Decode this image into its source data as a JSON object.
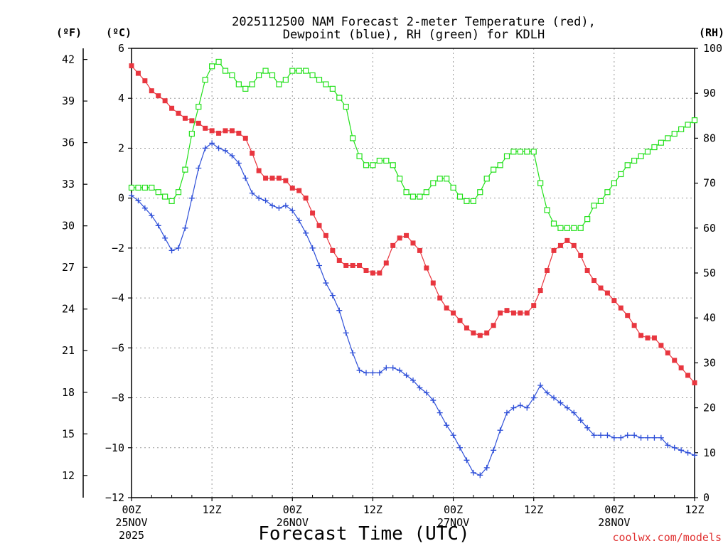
{
  "chart_data": {
    "type": "line",
    "title_line1": "2025112500 NAM Forecast 2-meter Temperature (red),",
    "title_line2": "Dewpoint (blue), RH (green) for KDLH",
    "unit_f": "(ºF)",
    "unit_c": "(ºC)",
    "unit_rh": "(RH)",
    "xlabel": "Forecast Time (UTC)",
    "credit": "coolwx.com/models",
    "x_range_hours": [
      0,
      84
    ],
    "y_left_range_c": [
      -12,
      6
    ],
    "y_right_range_rh": [
      0,
      100
    ],
    "y_ticks_c": [
      "6",
      "4",
      "2",
      "0",
      "−2",
      "−4",
      "−6",
      "−8",
      "−10",
      "−12"
    ],
    "y_ticks_f": [
      "42",
      "39",
      "36",
      "33",
      "30",
      "27",
      "24",
      "21",
      "18",
      "15",
      "12"
    ],
    "y_ticks_rh": [
      "100",
      "90",
      "80",
      "70",
      "60",
      "50",
      "40",
      "30",
      "20",
      "10",
      "0"
    ],
    "x_ticks": [
      {
        "h": 0,
        "label": "00Z",
        "sub1": "25NOV",
        "sub2": "2025"
      },
      {
        "h": 12,
        "label": "12Z",
        "sub1": "",
        "sub2": ""
      },
      {
        "h": 24,
        "label": "00Z",
        "sub1": "26NOV",
        "sub2": ""
      },
      {
        "h": 36,
        "label": "12Z",
        "sub1": "",
        "sub2": ""
      },
      {
        "h": 48,
        "label": "00Z",
        "sub1": "27NOV",
        "sub2": ""
      },
      {
        "h": 60,
        "label": "12Z",
        "sub1": "",
        "sub2": ""
      },
      {
        "h": 72,
        "label": "00Z",
        "sub1": "28NOV",
        "sub2": ""
      },
      {
        "h": 84,
        "label": "12Z",
        "sub1": "",
        "sub2": ""
      }
    ],
    "series": [
      {
        "name": "2-meter Temperature",
        "axis": "celsius",
        "color": "#e8363f",
        "marker": "filled-square",
        "x": [
          0,
          1,
          2,
          3,
          4,
          5,
          6,
          7,
          8,
          9,
          10,
          11,
          12,
          13,
          14,
          15,
          16,
          17,
          18,
          19,
          20,
          21,
          22,
          23,
          24,
          25,
          26,
          27,
          28,
          29,
          30,
          31,
          32,
          33,
          34,
          35,
          36,
          37,
          38,
          39,
          40,
          41,
          42,
          43,
          44,
          45,
          46,
          47,
          48,
          49,
          50,
          51,
          52,
          53,
          54,
          55,
          56,
          57,
          58,
          59,
          60,
          61,
          62,
          63,
          64,
          65,
          66,
          67,
          68,
          69,
          70,
          71,
          72,
          73,
          74,
          75,
          76,
          77,
          78,
          79,
          80,
          81,
          82,
          83,
          84
        ],
        "values": [
          5.3,
          5.0,
          4.7,
          4.3,
          4.1,
          3.9,
          3.6,
          3.4,
          3.2,
          3.1,
          3.0,
          2.8,
          2.7,
          2.6,
          2.7,
          2.7,
          2.6,
          2.4,
          1.8,
          1.1,
          0.8,
          0.8,
          0.8,
          0.7,
          0.4,
          0.3,
          0,
          -0.6,
          -1.1,
          -1.5,
          -2.1,
          -2.5,
          -2.7,
          -2.7,
          -2.7,
          -2.9,
          -3.0,
          -3.0,
          -2.6,
          -1.9,
          -1.6,
          -1.5,
          -1.8,
          -2.1,
          -2.8,
          -3.4,
          -4.0,
          -4.4,
          -4.6,
          -4.9,
          -5.2,
          -5.4,
          -5.5,
          -5.4,
          -5.1,
          -4.6,
          -4.5,
          -4.6,
          -4.6,
          -4.6,
          -4.3,
          -3.7,
          -2.9,
          -2.1,
          -1.9,
          -1.7,
          -1.9,
          -2.3,
          -2.9,
          -3.3,
          -3.6,
          -3.8,
          -4.1,
          -4.4,
          -4.7,
          -5.1,
          -5.5,
          -5.6,
          -5.6,
          -5.9,
          -6.2,
          -6.5,
          -6.8,
          -7.1,
          -7.4
        ]
      },
      {
        "name": "Dewpoint",
        "axis": "celsius",
        "color": "#2e4fd8",
        "marker": "plus",
        "x": [
          0,
          1,
          2,
          3,
          4,
          5,
          6,
          7,
          8,
          9,
          10,
          11,
          12,
          13,
          14,
          15,
          16,
          17,
          18,
          19,
          20,
          21,
          22,
          23,
          24,
          25,
          26,
          27,
          28,
          29,
          30,
          31,
          32,
          33,
          34,
          35,
          36,
          37,
          38,
          39,
          40,
          41,
          42,
          43,
          44,
          45,
          46,
          47,
          48,
          49,
          50,
          51,
          52,
          53,
          54,
          55,
          56,
          57,
          58,
          59,
          60,
          61,
          62,
          63,
          64,
          65,
          66,
          67,
          68,
          69,
          70,
          71,
          72,
          73,
          74,
          75,
          76,
          77,
          78,
          79,
          80,
          81,
          82,
          83,
          84
        ],
        "values": [
          0.1,
          -0.1,
          -0.4,
          -0.7,
          -1.1,
          -1.6,
          -2.1,
          -2.0,
          -1.2,
          0,
          1.2,
          2.0,
          2.2,
          2.0,
          1.9,
          1.7,
          1.4,
          0.8,
          0.2,
          0,
          -0.1,
          -0.3,
          -0.4,
          -0.3,
          -0.5,
          -0.9,
          -1.4,
          -2.0,
          -2.7,
          -3.4,
          -3.9,
          -4.5,
          -5.4,
          -6.2,
          -6.9,
          -7.0,
          -7.0,
          -7.0,
          -6.8,
          -6.8,
          -6.9,
          -7.1,
          -7.3,
          -7.6,
          -7.8,
          -8.1,
          -8.6,
          -9.1,
          -9.5,
          -10.0,
          -10.5,
          -11.0,
          -11.1,
          -10.8,
          -10.1,
          -9.3,
          -8.6,
          -8.4,
          -8.3,
          -8.4,
          -8.0,
          -7.5,
          -7.8,
          -8.0,
          -8.2,
          -8.4,
          -8.6,
          -8.9,
          -9.2,
          -9.5,
          -9.5,
          -9.5,
          -9.6,
          -9.6,
          -9.5,
          -9.5,
          -9.6,
          -9.6,
          -9.6,
          -9.6,
          -9.9,
          -10.0,
          -10.1,
          -10.2,
          -10.3
        ]
      },
      {
        "name": "RH",
        "axis": "percent",
        "color": "#22e01a",
        "marker": "open-square",
        "x": [
          0,
          1,
          2,
          3,
          4,
          5,
          6,
          7,
          8,
          9,
          10,
          11,
          12,
          13,
          14,
          15,
          16,
          17,
          18,
          19,
          20,
          21,
          22,
          23,
          24,
          25,
          26,
          27,
          28,
          29,
          30,
          31,
          32,
          33,
          34,
          35,
          36,
          37,
          38,
          39,
          40,
          41,
          42,
          43,
          44,
          45,
          46,
          47,
          48,
          49,
          50,
          51,
          52,
          53,
          54,
          55,
          56,
          57,
          58,
          59,
          60,
          61,
          62,
          63,
          64,
          65,
          66,
          67,
          68,
          69,
          70,
          71,
          72,
          73,
          74,
          75,
          76,
          77,
          78,
          79,
          80,
          81,
          82,
          83,
          84
        ],
        "values": [
          69,
          69,
          69,
          69,
          68,
          67,
          66,
          68,
          73,
          81,
          87,
          93,
          96,
          97,
          95,
          94,
          92,
          91,
          92,
          94,
          95,
          94,
          92,
          93,
          95,
          95,
          95,
          94,
          93,
          92,
          91,
          89,
          87,
          80,
          76,
          74,
          74,
          75,
          75,
          74,
          71,
          68,
          67,
          67,
          68,
          70,
          71,
          71,
          69,
          67,
          66,
          66,
          68,
          71,
          73,
          74,
          76,
          77,
          77,
          77,
          77,
          70,
          64,
          61,
          60,
          60,
          60,
          60,
          62,
          65,
          66,
          68,
          70,
          72,
          74,
          75,
          76,
          77,
          78,
          79,
          80,
          81,
          82,
          83,
          84
        ]
      }
    ]
  }
}
